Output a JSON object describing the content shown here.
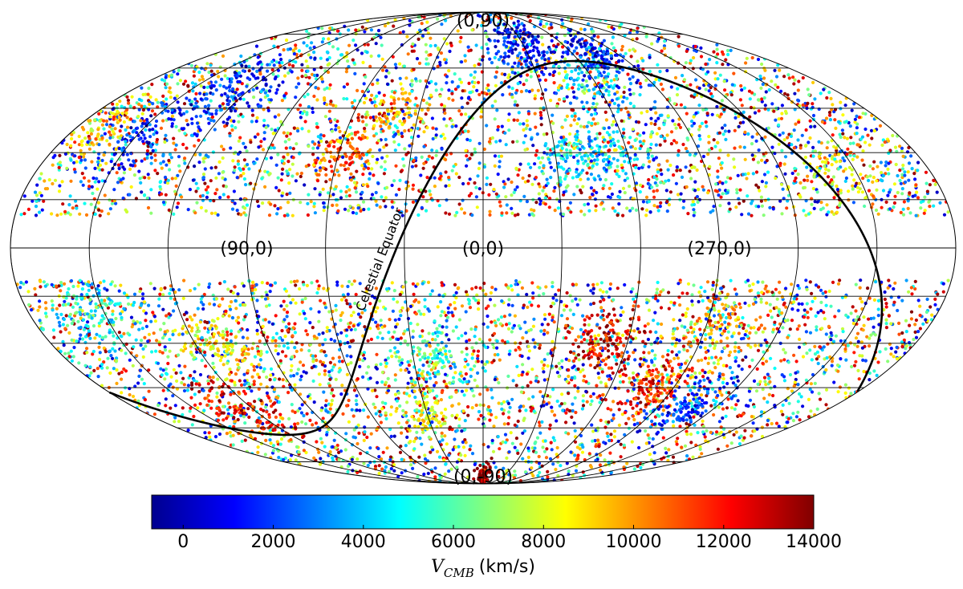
{
  "chart_data": {
    "type": "scatter",
    "projection": "mollweide",
    "coordinate_system": "galactic (l, b)",
    "grid": true,
    "meridians_deg": [
      0,
      30,
      60,
      90,
      120,
      150,
      180,
      210,
      240,
      270,
      300,
      330
    ],
    "parallels_deg": [
      -75,
      -60,
      -45,
      -30,
      -15,
      0,
      15,
      30,
      45,
      60,
      75
    ],
    "center_longitude": 0,
    "longitude_increases": "leftward",
    "labels": [
      {
        "text": "(0,90)",
        "l": 0,
        "b": 90
      },
      {
        "text": "(90,0)",
        "l": 90,
        "b": 0
      },
      {
        "text": "(0,0)",
        "l": 0,
        "b": 0
      },
      {
        "text": "(270,0)",
        "l": 270,
        "b": 0
      },
      {
        "text": "(0,-90)",
        "l": 0,
        "b": -90
      }
    ],
    "celestial_equator": {
      "label": "Celestial Equator",
      "north_galactic_pole_ra_dec": [
        192.85948,
        27.12825
      ],
      "galactic_l_of_ncp": 122.93192
    },
    "zone_of_avoidance_deg": 10,
    "colorbar": {
      "label_var": "V",
      "label_sub": "CMB",
      "label_units": "(km/s)",
      "vmin": -700,
      "vmax": 14000,
      "ticks": [
        0,
        2000,
        4000,
        6000,
        8000,
        10000,
        12000,
        14000
      ],
      "tick_labels": [
        "0",
        "2000",
        "4000",
        "6000",
        "8000",
        "10000",
        "12000",
        "14000"
      ],
      "colormap": "jet",
      "stops": [
        "#00008f",
        "#0000ff",
        "#0080ff",
        "#00ffff",
        "#80ff80",
        "#ffff00",
        "#ff8000",
        "#ff0000",
        "#800000"
      ]
    },
    "clusters": [
      {
        "l": 330,
        "b": 70,
        "spread": 12,
        "v": 1200,
        "n": 160
      },
      {
        "l": 285,
        "b": 65,
        "spread": 8,
        "v": 1500,
        "n": 120
      },
      {
        "l": 305,
        "b": 30,
        "spread": 8,
        "v": 4500,
        "n": 110
      },
      {
        "l": 325,
        "b": 28,
        "spread": 7,
        "v": 4200,
        "n": 90
      },
      {
        "l": 300,
        "b": 55,
        "spread": 9,
        "v": 3800,
        "n": 90
      },
      {
        "l": 128,
        "b": 52,
        "spread": 12,
        "v": 1400,
        "n": 150
      },
      {
        "l": 150,
        "b": 35,
        "spread": 10,
        "v": 1800,
        "n": 110
      },
      {
        "l": 58,
        "b": 28,
        "spread": 8,
        "v": 11000,
        "n": 110
      },
      {
        "l": 40,
        "b": 45,
        "spread": 8,
        "v": 9500,
        "n": 80
      },
      {
        "l": 155,
        "b": -20,
        "spread": 10,
        "v": 5000,
        "n": 150
      },
      {
        "l": 110,
        "b": -30,
        "spread": 8,
        "v": 8500,
        "n": 130
      },
      {
        "l": 125,
        "b": -52,
        "spread": 10,
        "v": 12000,
        "n": 130
      },
      {
        "l": 20,
        "b": -35,
        "spread": 10,
        "v": 5500,
        "n": 120
      },
      {
        "l": 30,
        "b": -55,
        "spread": 8,
        "v": 8000,
        "n": 100
      },
      {
        "l": 0,
        "b": -82,
        "spread": 5,
        "v": 13500,
        "n": 60
      },
      {
        "l": 280,
        "b": -45,
        "spread": 8,
        "v": 11500,
        "n": 150
      },
      {
        "l": 310,
        "b": -30,
        "spread": 8,
        "v": 12500,
        "n": 130
      },
      {
        "l": 255,
        "b": -52,
        "spread": 8,
        "v": 1800,
        "n": 130
      },
      {
        "l": 265,
        "b": -25,
        "spread": 10,
        "v": 9500,
        "n": 110
      },
      {
        "l": 170,
        "b": 40,
        "spread": 10,
        "v": 9000,
        "n": 90
      },
      {
        "l": 215,
        "b": 25,
        "spread": 10,
        "v": 8000,
        "n": 80
      }
    ],
    "background_points": 7800
  }
}
